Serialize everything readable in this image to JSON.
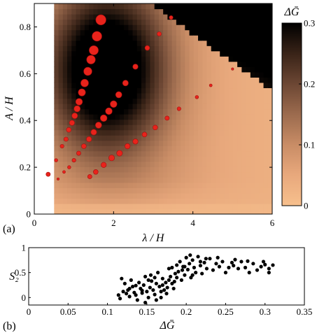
{
  "chart_data": [
    {
      "panel_label": "(a)",
      "type": "heatmap",
      "xlabel": "λ / H",
      "ylabel": "A / H",
      "xlim": [
        0,
        6
      ],
      "ylim": [
        0,
        0.9
      ],
      "x_ticks": [
        "0",
        "2",
        "4",
        "6"
      ],
      "y_ticks": [
        "0",
        "0.2",
        "0.4",
        "0.6",
        "0.8"
      ],
      "colorbar": {
        "label": "ΔḠ",
        "range": [
          0,
          0.3
        ],
        "ticks": [
          "0",
          "0.1",
          "0.2",
          "0.3"
        ],
        "colormap": [
          "#f7c08d",
          "#e8a87c",
          "#c98d66",
          "#9c6b4e",
          "#6b4633",
          "#3a2418",
          "#000000"
        ]
      },
      "heatmap_domain": {
        "x_start": 0.5,
        "x_end": 6.0,
        "y_start": 0.0,
        "y_end": 0.9
      },
      "empty_region_color": "#ffffff",
      "marker_color": "#e8231b",
      "marker_edge_color": "#a01010",
      "series": [
        {
          "points": [
            {
              "x": 0.35,
              "y": 0.17,
              "s": 0.3
            },
            {
              "x": 0.55,
              "y": 0.23,
              "s": 0.2
            },
            {
              "x": 0.7,
              "y": 0.29,
              "s": 0.25
            },
            {
              "x": 0.8,
              "y": 0.32,
              "s": 0.3
            },
            {
              "x": 0.87,
              "y": 0.36,
              "s": 0.35
            },
            {
              "x": 0.95,
              "y": 0.39,
              "s": 0.4
            },
            {
              "x": 1.02,
              "y": 0.42,
              "s": 0.45
            },
            {
              "x": 1.08,
              "y": 0.45,
              "s": 0.5
            },
            {
              "x": 1.13,
              "y": 0.48,
              "s": 0.55
            },
            {
              "x": 1.2,
              "y": 0.52,
              "s": 0.6
            },
            {
              "x": 1.27,
              "y": 0.56,
              "s": 0.65
            },
            {
              "x": 1.35,
              "y": 0.61,
              "s": 0.7
            },
            {
              "x": 1.43,
              "y": 0.66,
              "s": 0.75
            },
            {
              "x": 1.5,
              "y": 0.7,
              "s": 0.8
            },
            {
              "x": 1.58,
              "y": 0.76,
              "s": 0.85
            },
            {
              "x": 1.68,
              "y": 0.83,
              "s": 0.9
            }
          ]
        },
        {
          "points": [
            {
              "x": 0.6,
              "y": 0.15,
              "s": 0.1
            },
            {
              "x": 0.75,
              "y": 0.18,
              "s": 0.15
            },
            {
              "x": 0.88,
              "y": 0.2,
              "s": 0.2
            },
            {
              "x": 1.0,
              "y": 0.23,
              "s": 0.25
            },
            {
              "x": 1.12,
              "y": 0.26,
              "s": 0.3
            },
            {
              "x": 1.25,
              "y": 0.29,
              "s": 0.35
            },
            {
              "x": 1.38,
              "y": 0.32,
              "s": 0.4
            },
            {
              "x": 1.5,
              "y": 0.35,
              "s": 0.45
            },
            {
              "x": 1.62,
              "y": 0.38,
              "s": 0.5
            },
            {
              "x": 1.75,
              "y": 0.41,
              "s": 0.55
            },
            {
              "x": 1.88,
              "y": 0.44,
              "s": 0.55
            },
            {
              "x": 2.0,
              "y": 0.47,
              "s": 0.55
            },
            {
              "x": 2.13,
              "y": 0.51,
              "s": 0.5
            },
            {
              "x": 2.3,
              "y": 0.56,
              "s": 0.45
            },
            {
              "x": 2.55,
              "y": 0.63,
              "s": 0.4
            },
            {
              "x": 2.85,
              "y": 0.71,
              "s": 0.35
            },
            {
              "x": 3.15,
              "y": 0.77,
              "s": 0.3
            },
            {
              "x": 3.45,
              "y": 0.84,
              "s": 0.25
            }
          ]
        },
        {
          "points": [
            {
              "x": 1.4,
              "y": 0.16,
              "s": 0.3
            },
            {
              "x": 1.55,
              "y": 0.18,
              "s": 0.35
            },
            {
              "x": 1.75,
              "y": 0.21,
              "s": 0.4
            },
            {
              "x": 1.95,
              "y": 0.24,
              "s": 0.45
            },
            {
              "x": 2.15,
              "y": 0.26,
              "s": 0.45
            },
            {
              "x": 2.35,
              "y": 0.29,
              "s": 0.4
            },
            {
              "x": 2.55,
              "y": 0.31,
              "s": 0.4
            },
            {
              "x": 2.78,
              "y": 0.34,
              "s": 0.35
            },
            {
              "x": 3.05,
              "y": 0.37,
              "s": 0.35
            },
            {
              "x": 3.35,
              "y": 0.41,
              "s": 0.3
            },
            {
              "x": 3.65,
              "y": 0.45,
              "s": 0.25
            },
            {
              "x": 4.1,
              "y": 0.5,
              "s": 0.2
            },
            {
              "x": 4.45,
              "y": 0.55,
              "s": 0.15
            },
            {
              "x": 5.0,
              "y": 0.62,
              "s": 0.1
            }
          ]
        }
      ]
    },
    {
      "panel_label": "(b)",
      "type": "scatter",
      "xlabel": "ΔḠ",
      "ylabel": "S₂",
      "xlim": [
        0,
        0.35
      ],
      "ylim": [
        -0.15,
        1.0
      ],
      "x_ticks": [
        "0",
        "0.05",
        "0.1",
        "0.15",
        "0.2",
        "0.25",
        "0.3",
        "0.35"
      ],
      "y_ticks": [
        "0",
        "0.5",
        "1"
      ],
      "marker_color": "#000000",
      "points": [
        [
          0.114,
          0.05
        ],
        [
          0.116,
          -0.02
        ],
        [
          0.118,
          0.38
        ],
        [
          0.12,
          0.12
        ],
        [
          0.122,
          0.28
        ],
        [
          0.124,
          0.08
        ],
        [
          0.126,
          0.15
        ],
        [
          0.128,
          0.02
        ],
        [
          0.13,
          0.35
        ],
        [
          0.132,
          0.22
        ],
        [
          0.134,
          0.1
        ],
        [
          0.136,
          0.05
        ],
        [
          0.138,
          -0.05
        ],
        [
          0.14,
          0.3
        ],
        [
          0.142,
          0.18
        ],
        [
          0.144,
          0.09
        ],
        [
          0.146,
          0.25
        ],
        [
          0.148,
          0.42
        ],
        [
          0.15,
          0.12
        ],
        [
          0.152,
          0.0
        ],
        [
          0.154,
          0.2
        ],
        [
          0.156,
          0.33
        ],
        [
          0.158,
          0.15
        ],
        [
          0.16,
          0.06
        ],
        [
          0.162,
          0.28
        ],
        [
          0.164,
          0.5
        ],
        [
          0.166,
          0.22
        ],
        [
          0.168,
          0.12
        ],
        [
          0.17,
          0.38
        ],
        [
          0.172,
          0.15
        ],
        [
          0.174,
          0.3
        ],
        [
          0.176,
          0.2
        ],
        [
          0.178,
          0.58
        ],
        [
          0.18,
          0.42
        ],
        [
          0.182,
          0.28
        ],
        [
          0.184,
          0.18
        ],
        [
          0.186,
          0.48
        ],
        [
          0.188,
          0.65
        ],
        [
          0.19,
          0.52
        ],
        [
          0.192,
          0.72
        ],
        [
          0.194,
          0.35
        ],
        [
          0.196,
          0.62
        ],
        [
          0.198,
          0.45
        ],
        [
          0.2,
          0.8
        ],
        [
          0.202,
          0.56
        ],
        [
          0.204,
          0.68
        ],
        [
          0.206,
          0.4
        ],
        [
          0.208,
          0.75
        ],
        [
          0.21,
          0.6
        ],
        [
          0.212,
          0.5
        ],
        [
          0.215,
          0.82
        ],
        [
          0.218,
          0.64
        ],
        [
          0.22,
          0.48
        ],
        [
          0.223,
          0.7
        ],
        [
          0.226,
          0.58
        ],
        [
          0.23,
          0.78
        ],
        [
          0.234,
          0.55
        ],
        [
          0.238,
          0.68
        ],
        [
          0.242,
          0.62
        ],
        [
          0.246,
          0.72
        ],
        [
          0.25,
          0.5
        ],
        [
          0.254,
          0.6
        ],
        [
          0.258,
          0.7
        ],
        [
          0.262,
          0.76
        ],
        [
          0.266,
          0.58
        ],
        [
          0.27,
          0.72
        ],
        [
          0.275,
          0.6
        ],
        [
          0.28,
          0.5
        ],
        [
          0.285,
          0.68
        ],
        [
          0.29,
          0.55
        ],
        [
          0.295,
          0.62
        ],
        [
          0.3,
          0.66
        ],
        [
          0.305,
          0.58
        ],
        [
          0.31,
          0.65
        ],
        [
          0.148,
          -0.1
        ],
        [
          0.155,
          0.45
        ],
        [
          0.162,
          -0.05
        ],
        [
          0.168,
          0.0
        ],
        [
          0.175,
          0.08
        ],
        [
          0.182,
          0.6
        ],
        [
          0.128,
          0.18
        ],
        [
          0.136,
          0.24
        ],
        [
          0.144,
          0.14
        ],
        [
          0.152,
          0.35
        ],
        [
          0.16,
          0.4
        ],
        [
          0.185,
          0.32
        ],
        [
          0.195,
          0.55
        ],
        [
          0.205,
          0.85
        ],
        [
          0.225,
          0.78
        ],
        [
          0.24,
          0.8
        ],
        [
          0.26,
          0.64
        ],
        [
          0.278,
          0.73
        ],
        [
          0.298,
          0.72
        ],
        [
          0.305,
          0.5
        ],
        [
          0.17,
          0.25
        ],
        [
          0.178,
          0.35
        ],
        [
          0.188,
          0.4
        ],
        [
          0.198,
          0.62
        ],
        [
          0.208,
          0.45
        ],
        [
          0.218,
          0.72
        ]
      ]
    }
  ]
}
